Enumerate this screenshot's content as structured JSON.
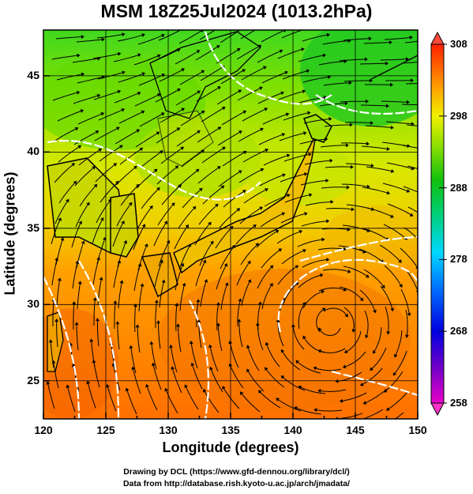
{
  "title": "MSM 18Z25Jul2024 (1013.2hPa)",
  "chart_data": {
    "type": "heatmap",
    "title": "MSM 18Z25Jul2024 (1013.2hPa)",
    "xlabel": "Longitude (degrees)",
    "ylabel": "Latitude  (degrees)",
    "xlim": [
      120,
      150
    ],
    "ylim": [
      22.5,
      48
    ],
    "x_ticks": [
      "120",
      "125",
      "130",
      "135",
      "140",
      "145",
      "150"
    ],
    "y_ticks": [
      "25",
      "30",
      "35",
      "40",
      "45"
    ],
    "grid": true,
    "colorbar": {
      "min": 258,
      "max": 308,
      "ticks": [
        "258",
        "268",
        "278",
        "288",
        "298",
        "308"
      ],
      "placement": "right"
    }
  },
  "credits": {
    "line1": "Drawing by DCL (https://www.gfd-dennou.org/library/dcl/)",
    "line2": "Data from http://database.rish.kyoto-u.ac.jp/arch/jmadata/"
  }
}
